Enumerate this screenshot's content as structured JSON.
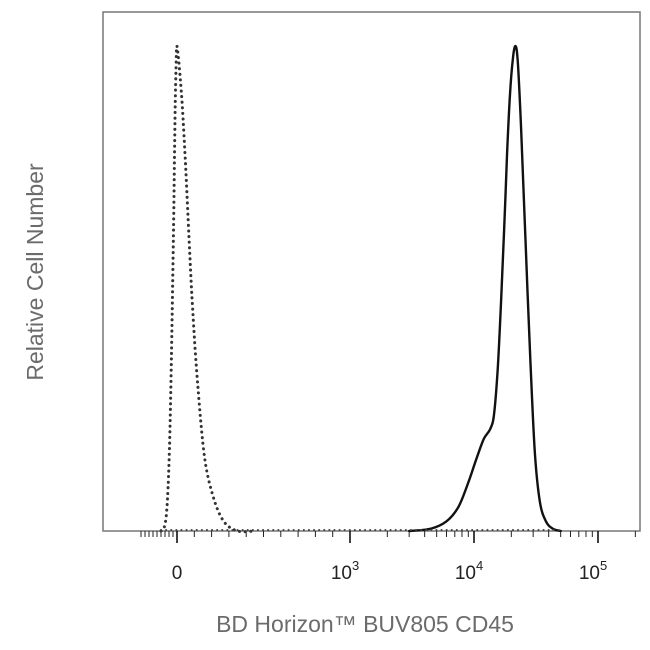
{
  "chart_data": {
    "type": "line",
    "title": "",
    "xlabel": "BD Horizon™ BUV805 CD45",
    "ylabel": "Relative Cell Number",
    "x_scale": "biexponential",
    "xlim": [
      -1000,
      200000
    ],
    "ylim": [
      0,
      1.0
    ],
    "grid": false,
    "legend": "none",
    "x_ticks": [
      {
        "value": 0,
        "base": "0",
        "exp": ""
      },
      {
        "value": 1000,
        "base": "10",
        "exp": "3"
      },
      {
        "value": 10000,
        "base": "10",
        "exp": "4"
      },
      {
        "value": 100000,
        "base": "10",
        "exp": "5"
      }
    ],
    "series": [
      {
        "style": "dotted",
        "color": "#333333",
        "x": [
          -400,
          -310,
          -250,
          -200,
          -160,
          -120,
          -80,
          -60,
          -40,
          -20,
          -5,
          10,
          30,
          50,
          70,
          90,
          120,
          160,
          210,
          270,
          350,
          450
        ],
        "y": [
          0.0,
          0.01,
          0.05,
          0.14,
          0.27,
          0.45,
          0.66,
          0.79,
          0.9,
          0.97,
          1.0,
          0.97,
          0.88,
          0.75,
          0.6,
          0.46,
          0.3,
          0.15,
          0.07,
          0.02,
          0.0,
          0.0
        ]
      },
      {
        "style": "solid",
        "color": "#111111",
        "x": [
          3000,
          4500,
          6000,
          7500,
          9000,
          10500,
          12000,
          13500,
          14500,
          15500,
          16500,
          17500,
          18500,
          19500,
          20500,
          21500,
          22500,
          24000,
          26000,
          28500,
          31000,
          34000,
          38000,
          43000,
          50000
        ],
        "y": [
          0.0,
          0.005,
          0.02,
          0.05,
          0.1,
          0.15,
          0.19,
          0.21,
          0.24,
          0.33,
          0.47,
          0.62,
          0.78,
          0.9,
          0.97,
          1.0,
          0.97,
          0.83,
          0.6,
          0.35,
          0.16,
          0.06,
          0.02,
          0.005,
          0.0
        ]
      }
    ]
  }
}
